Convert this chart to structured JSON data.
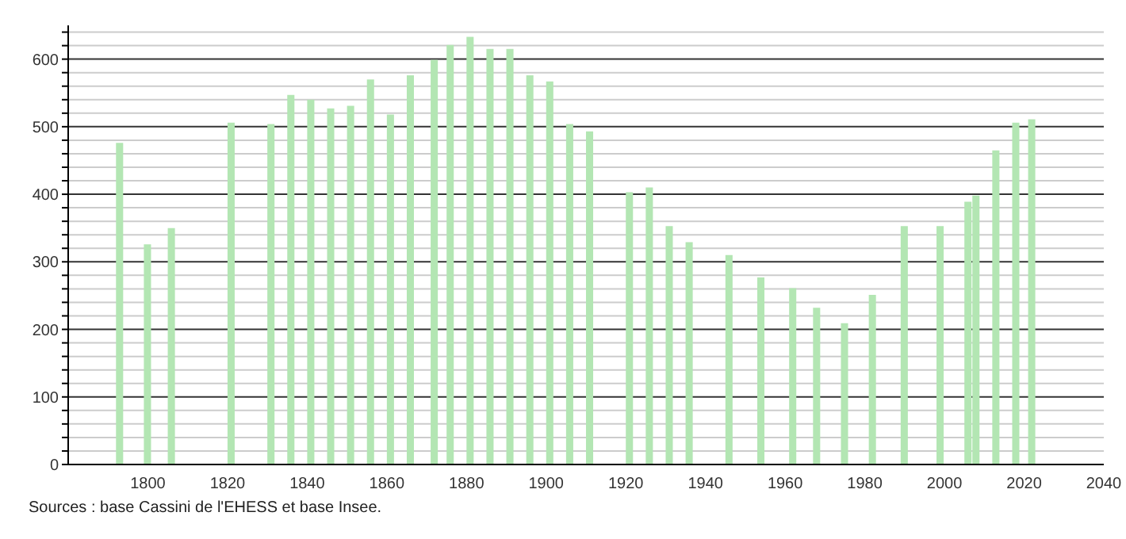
{
  "chart_data": {
    "type": "bar",
    "x": [
      1793,
      1800,
      1806,
      1821,
      1831,
      1836,
      1841,
      1846,
      1851,
      1856,
      1861,
      1866,
      1872,
      1876,
      1881,
      1886,
      1891,
      1896,
      1901,
      1906,
      1911,
      1921,
      1926,
      1931,
      1936,
      1946,
      1954,
      1962,
      1968,
      1975,
      1982,
      1990,
      1999,
      2006,
      2008,
      2013,
      2018,
      2022
    ],
    "values": [
      476,
      326,
      350,
      506,
      504,
      547,
      540,
      527,
      531,
      570,
      518,
      576,
      599,
      621,
      633,
      615,
      615,
      576,
      567,
      504,
      493,
      403,
      410,
      353,
      329,
      310,
      277,
      261,
      232,
      209,
      251,
      353,
      353,
      389,
      398,
      465,
      506,
      511
    ],
    "color": "#b3e6b3",
    "xlim": [
      1780,
      2040
    ],
    "xticks": [
      1800,
      1820,
      1840,
      1860,
      1880,
      1900,
      1920,
      1940,
      1960,
      1980,
      2000,
      2020,
      2040
    ],
    "ylim": [
      0,
      650
    ],
    "yticks": [
      0,
      {
        "value": 20,
        "label": null
      },
      {
        "value": 40,
        "label": null
      },
      {
        "value": 60,
        "label": null
      },
      {
        "value": 80,
        "label": null
      },
      100,
      {
        "value": 120,
        "label": null
      },
      {
        "value": 140,
        "label": null
      },
      {
        "value": 160,
        "label": null
      },
      {
        "value": 180,
        "label": null
      },
      200,
      {
        "value": 220,
        "label": null
      },
      {
        "value": 240,
        "label": null
      },
      {
        "value": 260,
        "label": null
      },
      {
        "value": 280,
        "label": null
      },
      300,
      {
        "value": 320,
        "label": null
      },
      {
        "value": 340,
        "label": null
      },
      {
        "value": 360,
        "label": null
      },
      {
        "value": 380,
        "label": null
      },
      400,
      {
        "value": 420,
        "label": null
      },
      {
        "value": 440,
        "label": null
      },
      {
        "value": 460,
        "label": null
      },
      {
        "value": 480,
        "label": null
      },
      500,
      {
        "value": 520,
        "label": null
      },
      {
        "value": 540,
        "label": null
      },
      {
        "value": 560,
        "label": null
      },
      {
        "value": 580,
        "label": null
      },
      600,
      {
        "value": 620,
        "label": null
      },
      {
        "value": 640,
        "label": null
      }
    ],
    "grid": "y",
    "annotations": [
      "Sources : base Cassini de l'EHESS et base Insee."
    ]
  }
}
